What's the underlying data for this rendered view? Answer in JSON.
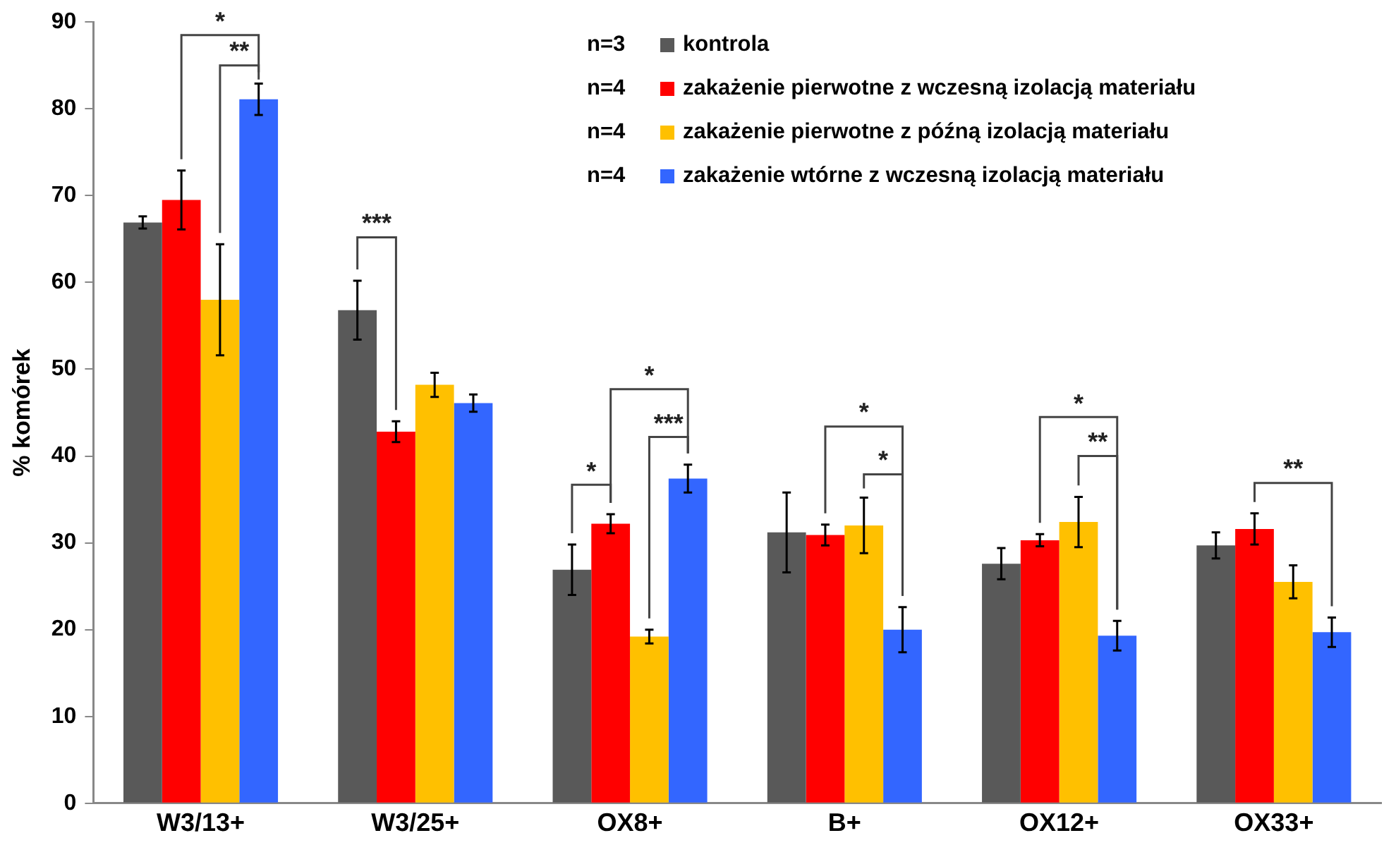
{
  "chart_data": {
    "type": "bar",
    "ylabel": "% komórek",
    "categories": [
      "W3/13+",
      "W3/25+",
      "OX8+",
      "B+",
      "OX12+",
      "OX33+"
    ],
    "series": [
      {
        "name": "kontrola",
        "color": "#595959",
        "values": [
          66.9,
          56.8,
          26.9,
          31.2,
          27.6,
          29.7
        ],
        "errors": [
          0.7,
          3.4,
          2.9,
          4.6,
          1.8,
          1.5
        ]
      },
      {
        "name": "zakażenie pierwotne z wczesną izolacją materiału",
        "color": "#ff0000",
        "values": [
          69.5,
          42.8,
          32.2,
          30.9,
          30.3,
          31.6
        ],
        "errors": [
          3.4,
          1.2,
          1.1,
          1.2,
          0.7,
          1.8
        ]
      },
      {
        "name": "zakażenie pierwotne z późną izolacją materiału",
        "color": "#ffc000",
        "values": [
          58,
          48.2,
          19.2,
          32,
          32.4,
          25.5
        ],
        "errors": [
          6.4,
          1.4,
          0.8,
          3.2,
          2.9,
          1.9
        ]
      },
      {
        "name": "zakażenie wtórne z wczesną izolacją materiału",
        "color": "#3366ff",
        "values": [
          81.1,
          46.1,
          37.4,
          20,
          19.3,
          19.7
        ],
        "errors": [
          1.8,
          1,
          1.6,
          2.6,
          1.7,
          1.7
        ]
      }
    ],
    "ylim": [
      0,
      90
    ],
    "yticks": [
      0,
      10,
      20,
      30,
      40,
      50,
      60,
      70,
      80,
      90
    ],
    "grid": false,
    "legend": "top right",
    "annotations": [
      "n=3",
      "n=4",
      "n=4",
      "n=4",
      "*",
      "**",
      "***",
      "*",
      "*",
      "***",
      "*",
      "*",
      "*",
      "**",
      "**"
    ]
  }
}
